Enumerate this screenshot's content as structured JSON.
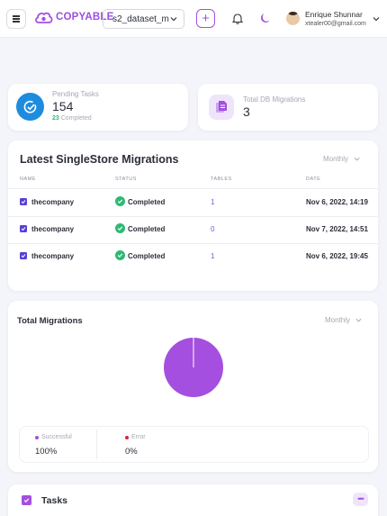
{
  "header": {
    "logo_text": "COPYABLE",
    "dataset_selector": "s2_dataset_m",
    "add_button": "+",
    "user_name": "Enrique Shunnar",
    "user_email": "xtealer00@gmail.com"
  },
  "stats": {
    "pending_label": "Pending Tasks",
    "pending_value": "154",
    "completed_count": "23",
    "completed_label": "Completed",
    "db_label": "Total DB Migrations",
    "db_value": "3"
  },
  "latest": {
    "title": "Latest SingleStore Migrations",
    "period": "Monthly",
    "columns": [
      "NAME",
      "STATUS",
      "TABLES",
      "DATE"
    ],
    "rows": [
      {
        "name": "thecompany",
        "status": "Completed",
        "tables": "1",
        "date": "Nov 6, 2022, 14:19"
      },
      {
        "name": "thecompany",
        "status": "Completed",
        "tables": "0",
        "date": "Nov 7, 2022, 14:51"
      },
      {
        "name": "thecompany",
        "status": "Completed",
        "tables": "1",
        "date": "Nov 6, 2022, 19:45"
      }
    ]
  },
  "total": {
    "title": "Total Migrations",
    "period": "Monthly",
    "legend": [
      {
        "label": "Successful",
        "value": "100%",
        "color": "#a44fe0"
      },
      {
        "label": "Error",
        "value": "0%",
        "color": "#d8233b"
      }
    ]
  },
  "chart_data": {
    "type": "pie",
    "labels": [
      "Successful",
      "Error"
    ],
    "values": [
      100,
      0
    ],
    "colors": [
      "#a44fe0",
      "#d8233b"
    ]
  },
  "tasks": {
    "title": "Tasks",
    "more_label": "•••"
  },
  "colors": {
    "accent": "#a44fe0",
    "success": "#2dba72",
    "primary_blue": "#1e8cde"
  }
}
